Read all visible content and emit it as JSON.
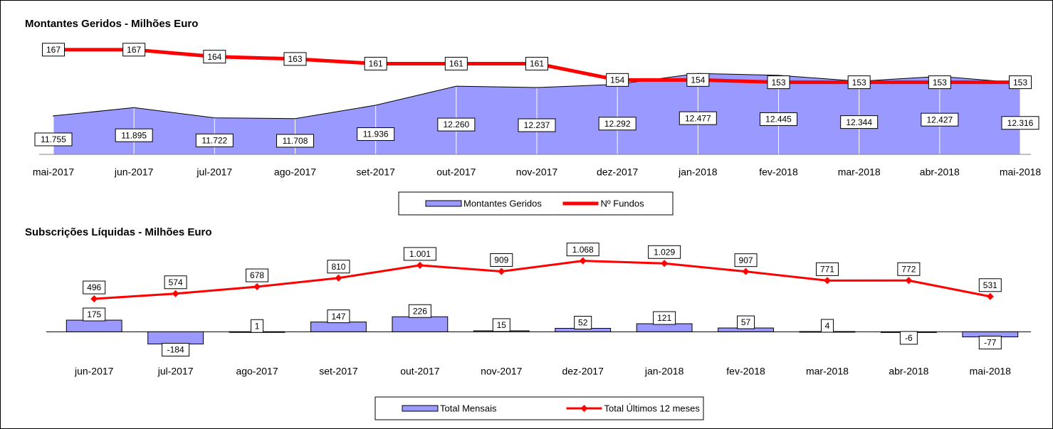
{
  "chart_data": [
    {
      "type": "combo",
      "title": "Montantes Geridos - Milhões Euro",
      "categories": [
        "mai-2017",
        "jun-2017",
        "jul-2017",
        "ago-2017",
        "set-2017",
        "out-2017",
        "nov-2017",
        "dez-2017",
        "jan-2018",
        "fev-2018",
        "mar-2018",
        "abr-2018",
        "mai-2018"
      ],
      "ylim": [
        11100,
        13000
      ],
      "y2lim": [
        122,
        170
      ],
      "series": [
        {
          "name": "Montantes Geridos",
          "type": "area",
          "color": "#9999ff",
          "values": [
            11755,
            11895,
            11722,
            11708,
            11936,
            12260,
            12237,
            12292,
            12477,
            12445,
            12344,
            12427,
            12316
          ],
          "value_labels": [
            "11.755",
            "11.895",
            "11.722",
            "11.708",
            "11.936",
            "12.260",
            "12.237",
            "12.292",
            "12.477",
            "12.445",
            "12.344",
            "12.427",
            "12.316"
          ]
        },
        {
          "name": "Nº Fundos",
          "type": "line",
          "color": "#ff0000",
          "axis": "y2",
          "values": [
            167,
            167,
            164,
            163,
            161,
            161,
            161,
            154,
            154,
            153,
            153,
            153,
            153
          ]
        }
      ]
    },
    {
      "type": "combo",
      "title": "Subscrições Líquidas - Milhões Euro",
      "categories": [
        "jun-2017",
        "jul-2017",
        "ago-2017",
        "set-2017",
        "out-2017",
        "nov-2017",
        "dez-2017",
        "jan-2018",
        "fev-2018",
        "mar-2018",
        "abr-2018",
        "mai-2018"
      ],
      "ylim": [
        -200,
        1300
      ],
      "series": [
        {
          "name": "Total Mensais",
          "type": "bar",
          "color": "#9999ff",
          "values": [
            175,
            -184,
            1,
            147,
            226,
            15,
            52,
            121,
            57,
            4,
            -6,
            -77
          ]
        },
        {
          "name": "Total Últimos 12 meses",
          "type": "line",
          "color": "#ff0000",
          "marker": "diamond",
          "values": [
            496,
            574,
            678,
            810,
            1001,
            909,
            1068,
            1029,
            907,
            771,
            772,
            531
          ],
          "value_labels": [
            "496",
            "574",
            "678",
            "810",
            "1.001",
            "909",
            "1.068",
            "1.029",
            "907",
            "771",
            "772",
            "531"
          ]
        }
      ]
    }
  ]
}
